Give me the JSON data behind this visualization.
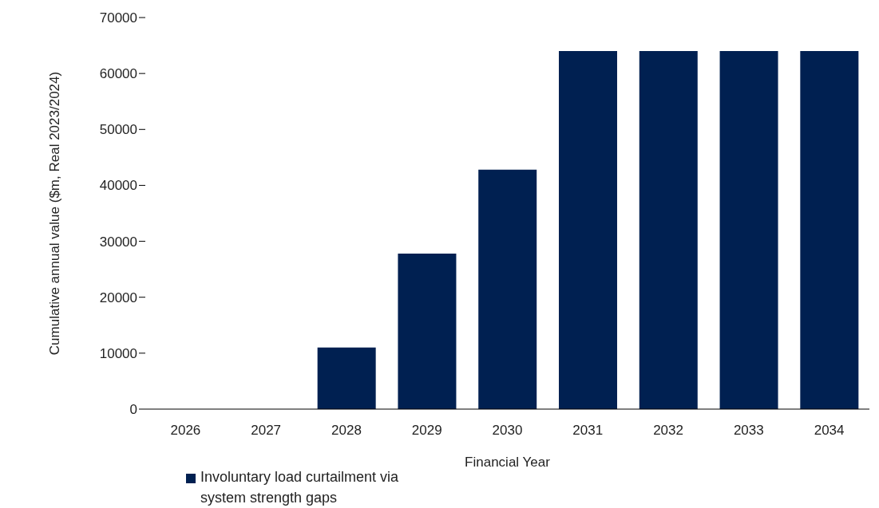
{
  "chart_data": {
    "type": "bar",
    "xlabel": "Financial Year",
    "ylabel": "Cumulative annual value ($m, Real 2023/2024)",
    "categories": [
      "2026",
      "2027",
      "2028",
      "2029",
      "2030",
      "2031",
      "2032",
      "2033",
      "2034"
    ],
    "series": [
      {
        "name": "Involuntary load curtailment via system strength gaps",
        "color": "#002051",
        "values": [
          0,
          0,
          11000,
          27800,
          42800,
          64000,
          64000,
          64000,
          64000
        ]
      }
    ],
    "ylim": [
      0,
      70000
    ],
    "yticks": [
      0,
      10000,
      20000,
      30000,
      40000,
      50000,
      60000,
      70000
    ],
    "grid": false,
    "legend": "bottom"
  }
}
